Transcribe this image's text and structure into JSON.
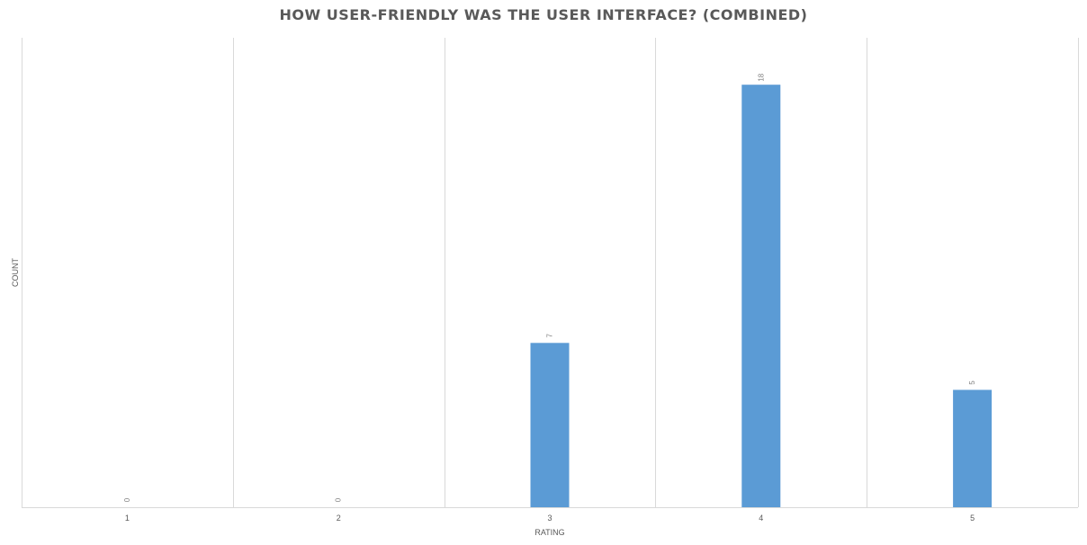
{
  "chart_data": {
    "type": "bar",
    "title": "HOW USER-FRIENDLY WAS THE USER INTERFACE? (COMBINED)",
    "xlabel": "RATING",
    "ylabel": "COUNT",
    "categories": [
      "1",
      "2",
      "3",
      "4",
      "5"
    ],
    "values": [
      0,
      0,
      7,
      18,
      5
    ],
    "ylim": [
      0,
      20
    ],
    "grid": "vertical",
    "legend": "none",
    "bar_color": "#5b9bd5"
  }
}
